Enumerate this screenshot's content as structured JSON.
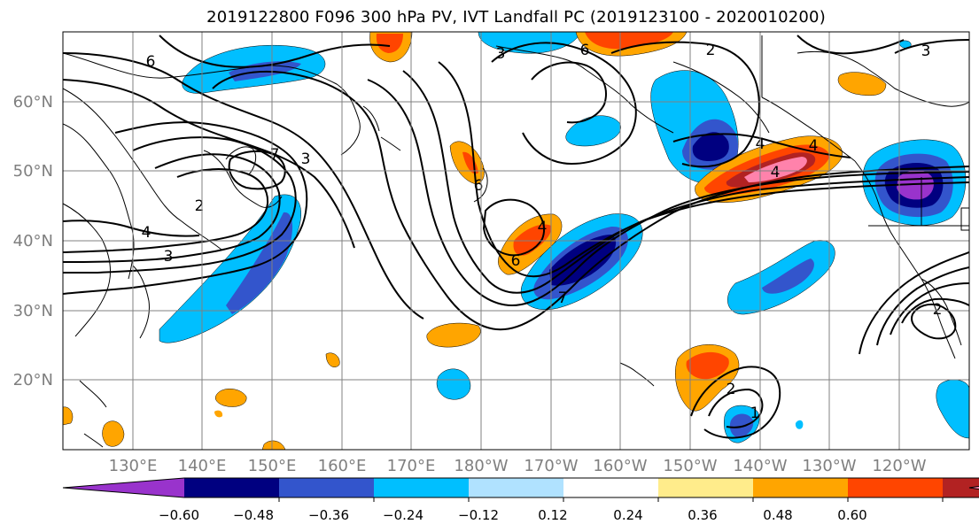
{
  "title": "2019122800 F096 300 hPa PV, IVT Landfall PC (2019123100 - 2020010200)",
  "lat_labels": [
    "60°N",
    "50°N",
    "40°N",
    "30°N",
    "20°N"
  ],
  "lon_labels": [
    "130°E",
    "140°E",
    "150°E",
    "160°E",
    "170°E",
    "180°W",
    "170°W",
    "160°W",
    "150°W",
    "140°W",
    "130°W",
    "120°W"
  ],
  "contour_labels": [
    "6",
    "2",
    "3",
    "7",
    "3",
    "4",
    "3",
    "6",
    "4",
    "6",
    "7",
    "2",
    "4",
    "4",
    "4",
    "6",
    "2",
    "2",
    "1",
    "3"
  ],
  "colorbar": {
    "tick_labels": [
      "−0.60",
      "−0.48",
      "−0.36",
      "−0.24",
      "−0.12",
      "0.12",
      "0.24",
      "0.36",
      "0.48",
      "0.60"
    ],
    "colors": [
      "#9933cc",
      "#000080",
      "#3355cc",
      "#00bfff",
      "#b0e2ff",
      "#ffffff",
      "#ffec8b",
      "#ffa500",
      "#ff4500",
      "#b22222",
      "#ff82ab"
    ]
  },
  "colors": {
    "grid": "#808080",
    "contour": "#000000",
    "coastline": "#000000"
  }
}
